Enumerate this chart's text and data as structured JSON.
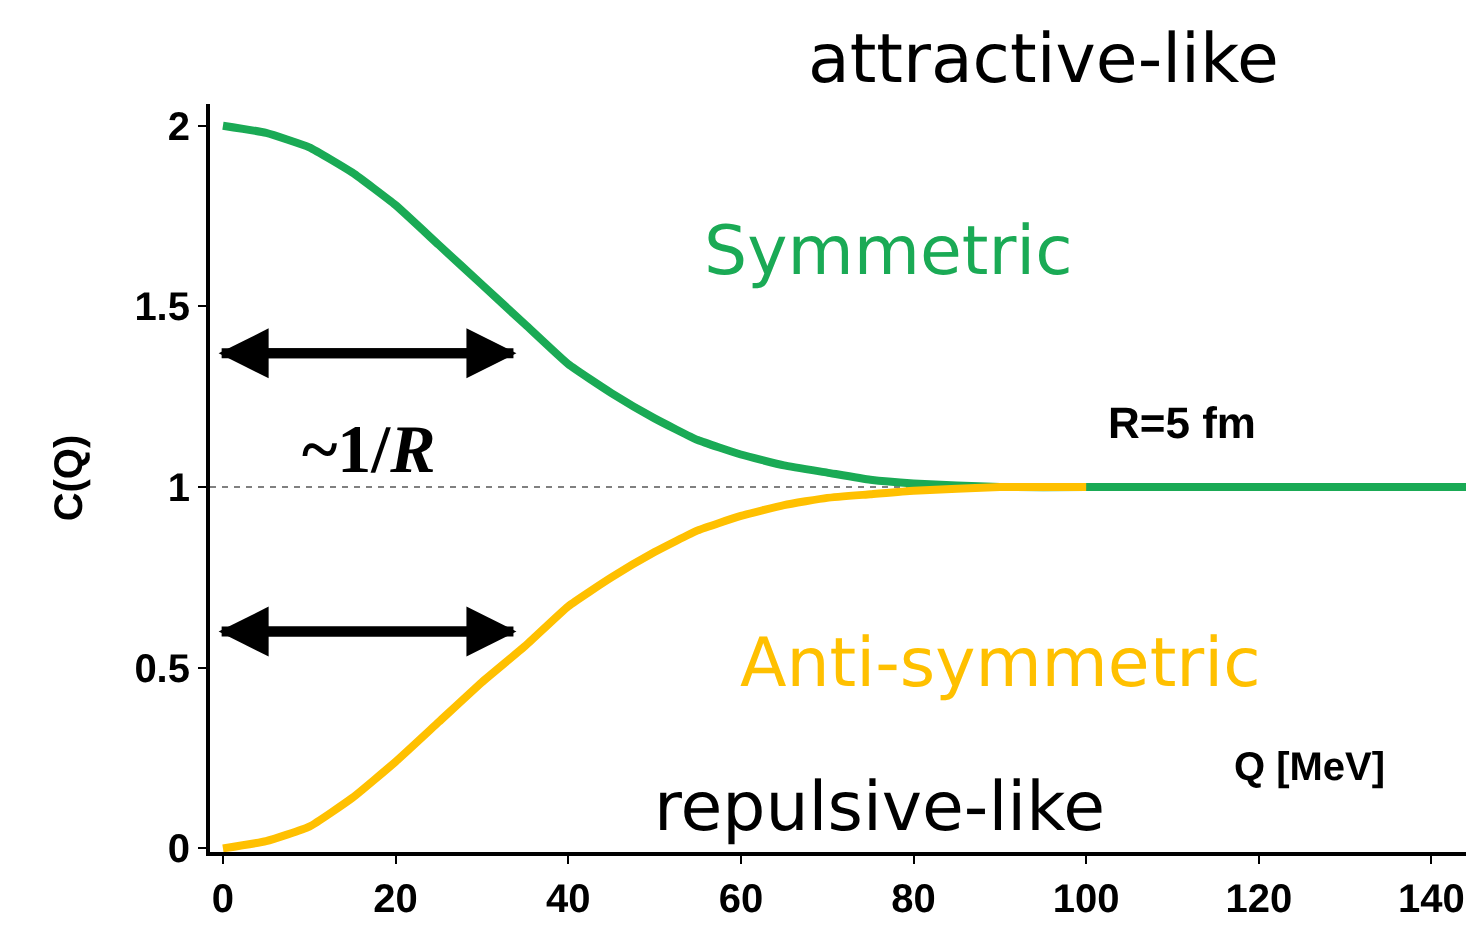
{
  "chart_data": {
    "type": "line",
    "ylabel": "C(Q)",
    "xlabel": "Q [MeV]",
    "x": [
      0,
      5,
      10,
      15,
      20,
      25,
      30,
      35,
      40,
      45,
      50,
      55,
      60,
      65,
      70,
      75,
      80,
      90,
      100,
      110,
      120,
      130,
      144
    ],
    "series": [
      {
        "name": "Symmetric",
        "color": "#1aaa55",
        "values": [
          2,
          1.98,
          1.94,
          1.87,
          1.78,
          1.67,
          1.56,
          1.45,
          1.34,
          1.26,
          1.19,
          1.13,
          1.09,
          1.06,
          1.04,
          1.02,
          1.01,
          1.0,
          1.0,
          1.0,
          1.0,
          1.0,
          1.0
        ]
      },
      {
        "name": "Anti-symmetric",
        "color": "#ffc000",
        "values": [
          0,
          0.02,
          0.06,
          0.14,
          0.24,
          0.35,
          0.46,
          0.56,
          0.67,
          0.75,
          0.82,
          0.88,
          0.92,
          0.95,
          0.97,
          0.98,
          0.99,
          1.0,
          1.0,
          null,
          null,
          null,
          null
        ]
      }
    ],
    "xlim": [
      -1.5,
      144
    ],
    "xticks": [
      0,
      20,
      40,
      60,
      80,
      100,
      120,
      140
    ],
    "ylim": [
      -0.01,
      2.06
    ],
    "yticks": [
      0,
      0.5,
      1,
      1.5,
      2
    ],
    "ref_lines": [
      {
        "axis": "y",
        "value": 1,
        "color": "#808080",
        "line_style": "dotted"
      }
    ],
    "annotations": [
      "attractive-like",
      "R=5 fm",
      "~1/R",
      "repulsive-like"
    ],
    "grid": false,
    "legend": false,
    "marker": "none",
    "line_style": "solid"
  }
}
